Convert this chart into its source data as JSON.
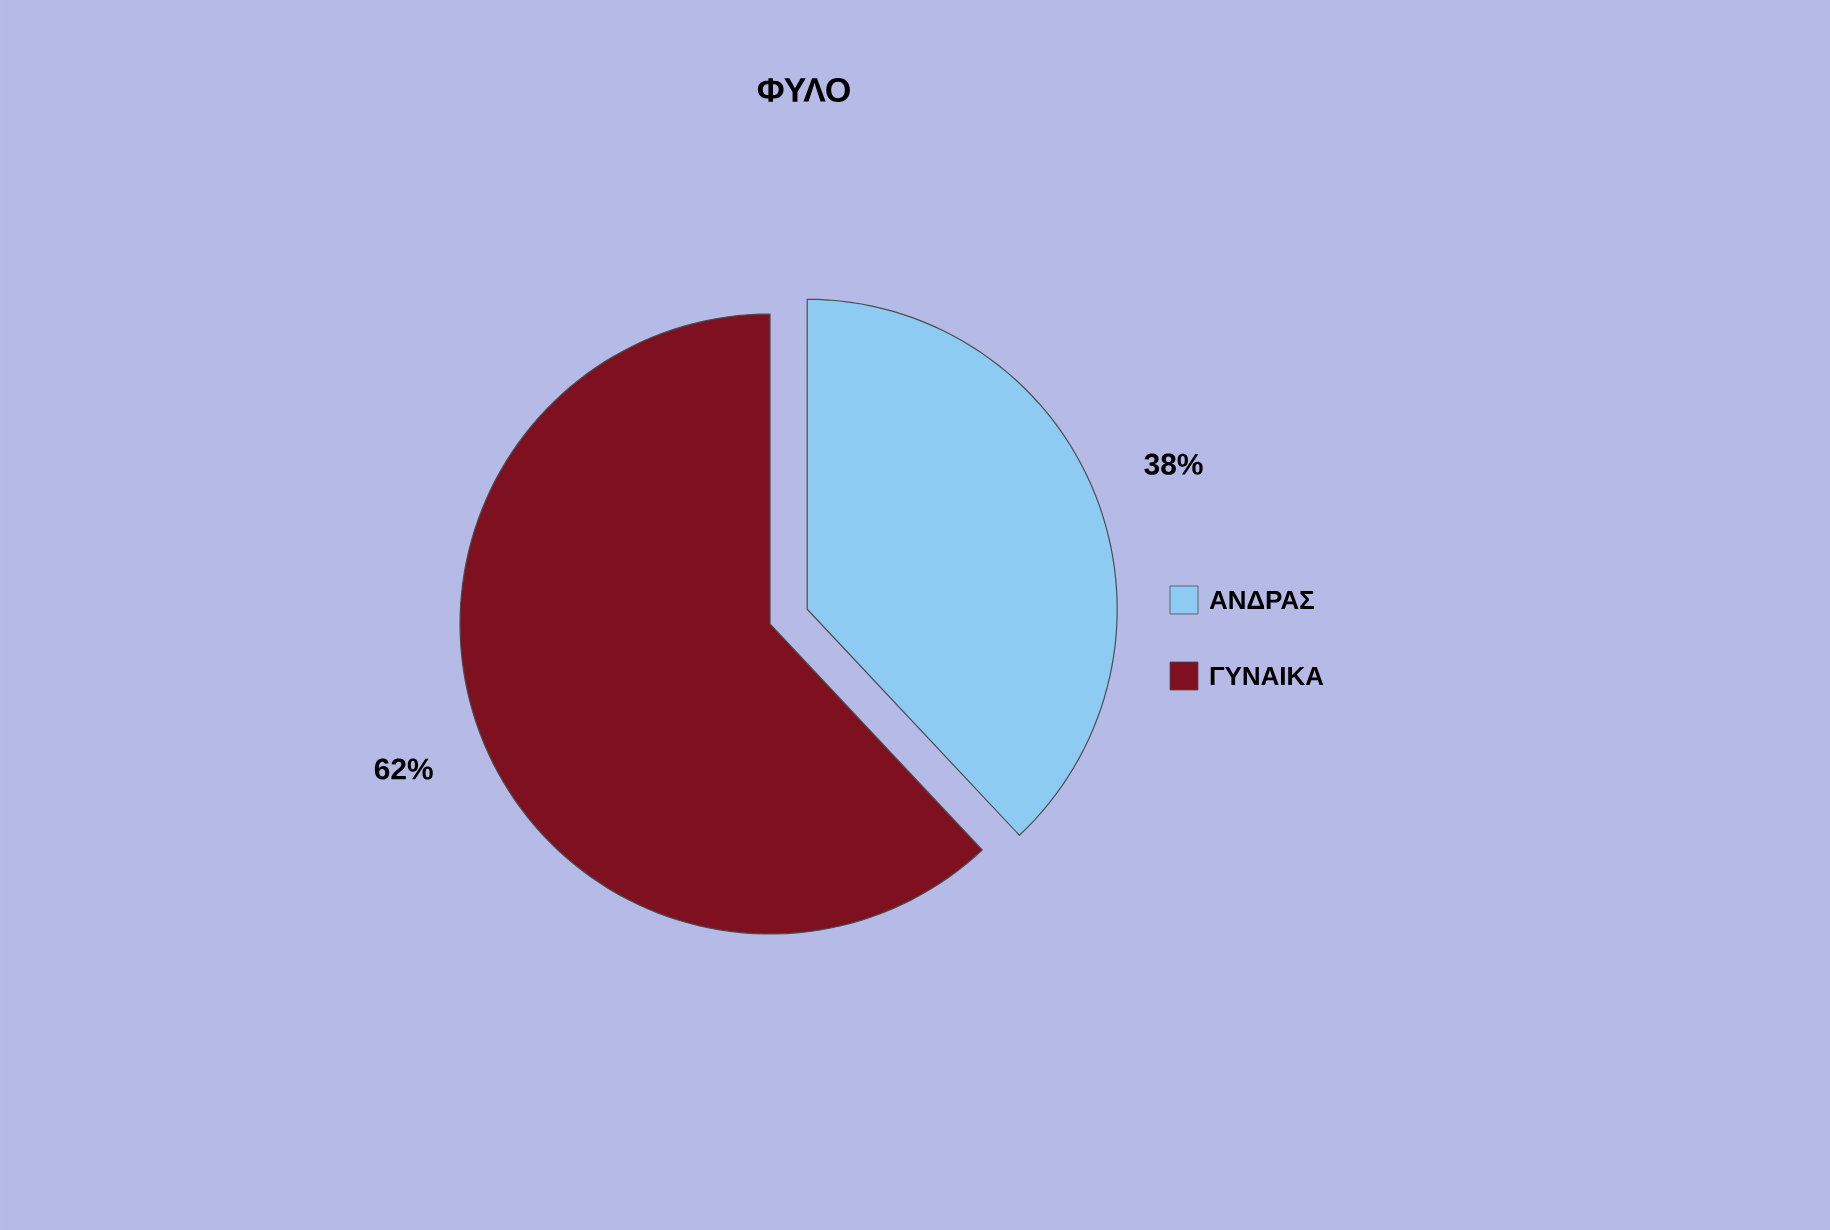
{
  "chart_data": {
    "type": "pie",
    "title": "ΦΥΛΟ",
    "categories": [
      "ΑΝΔΡΑΣ",
      "ΓΥΝΑΙΚΑ"
    ],
    "values": [
      38,
      62
    ],
    "colors": [
      "#8ECBF2",
      "#7F1020"
    ],
    "value_labels": [
      "38%",
      "62%"
    ],
    "legend": "right"
  }
}
